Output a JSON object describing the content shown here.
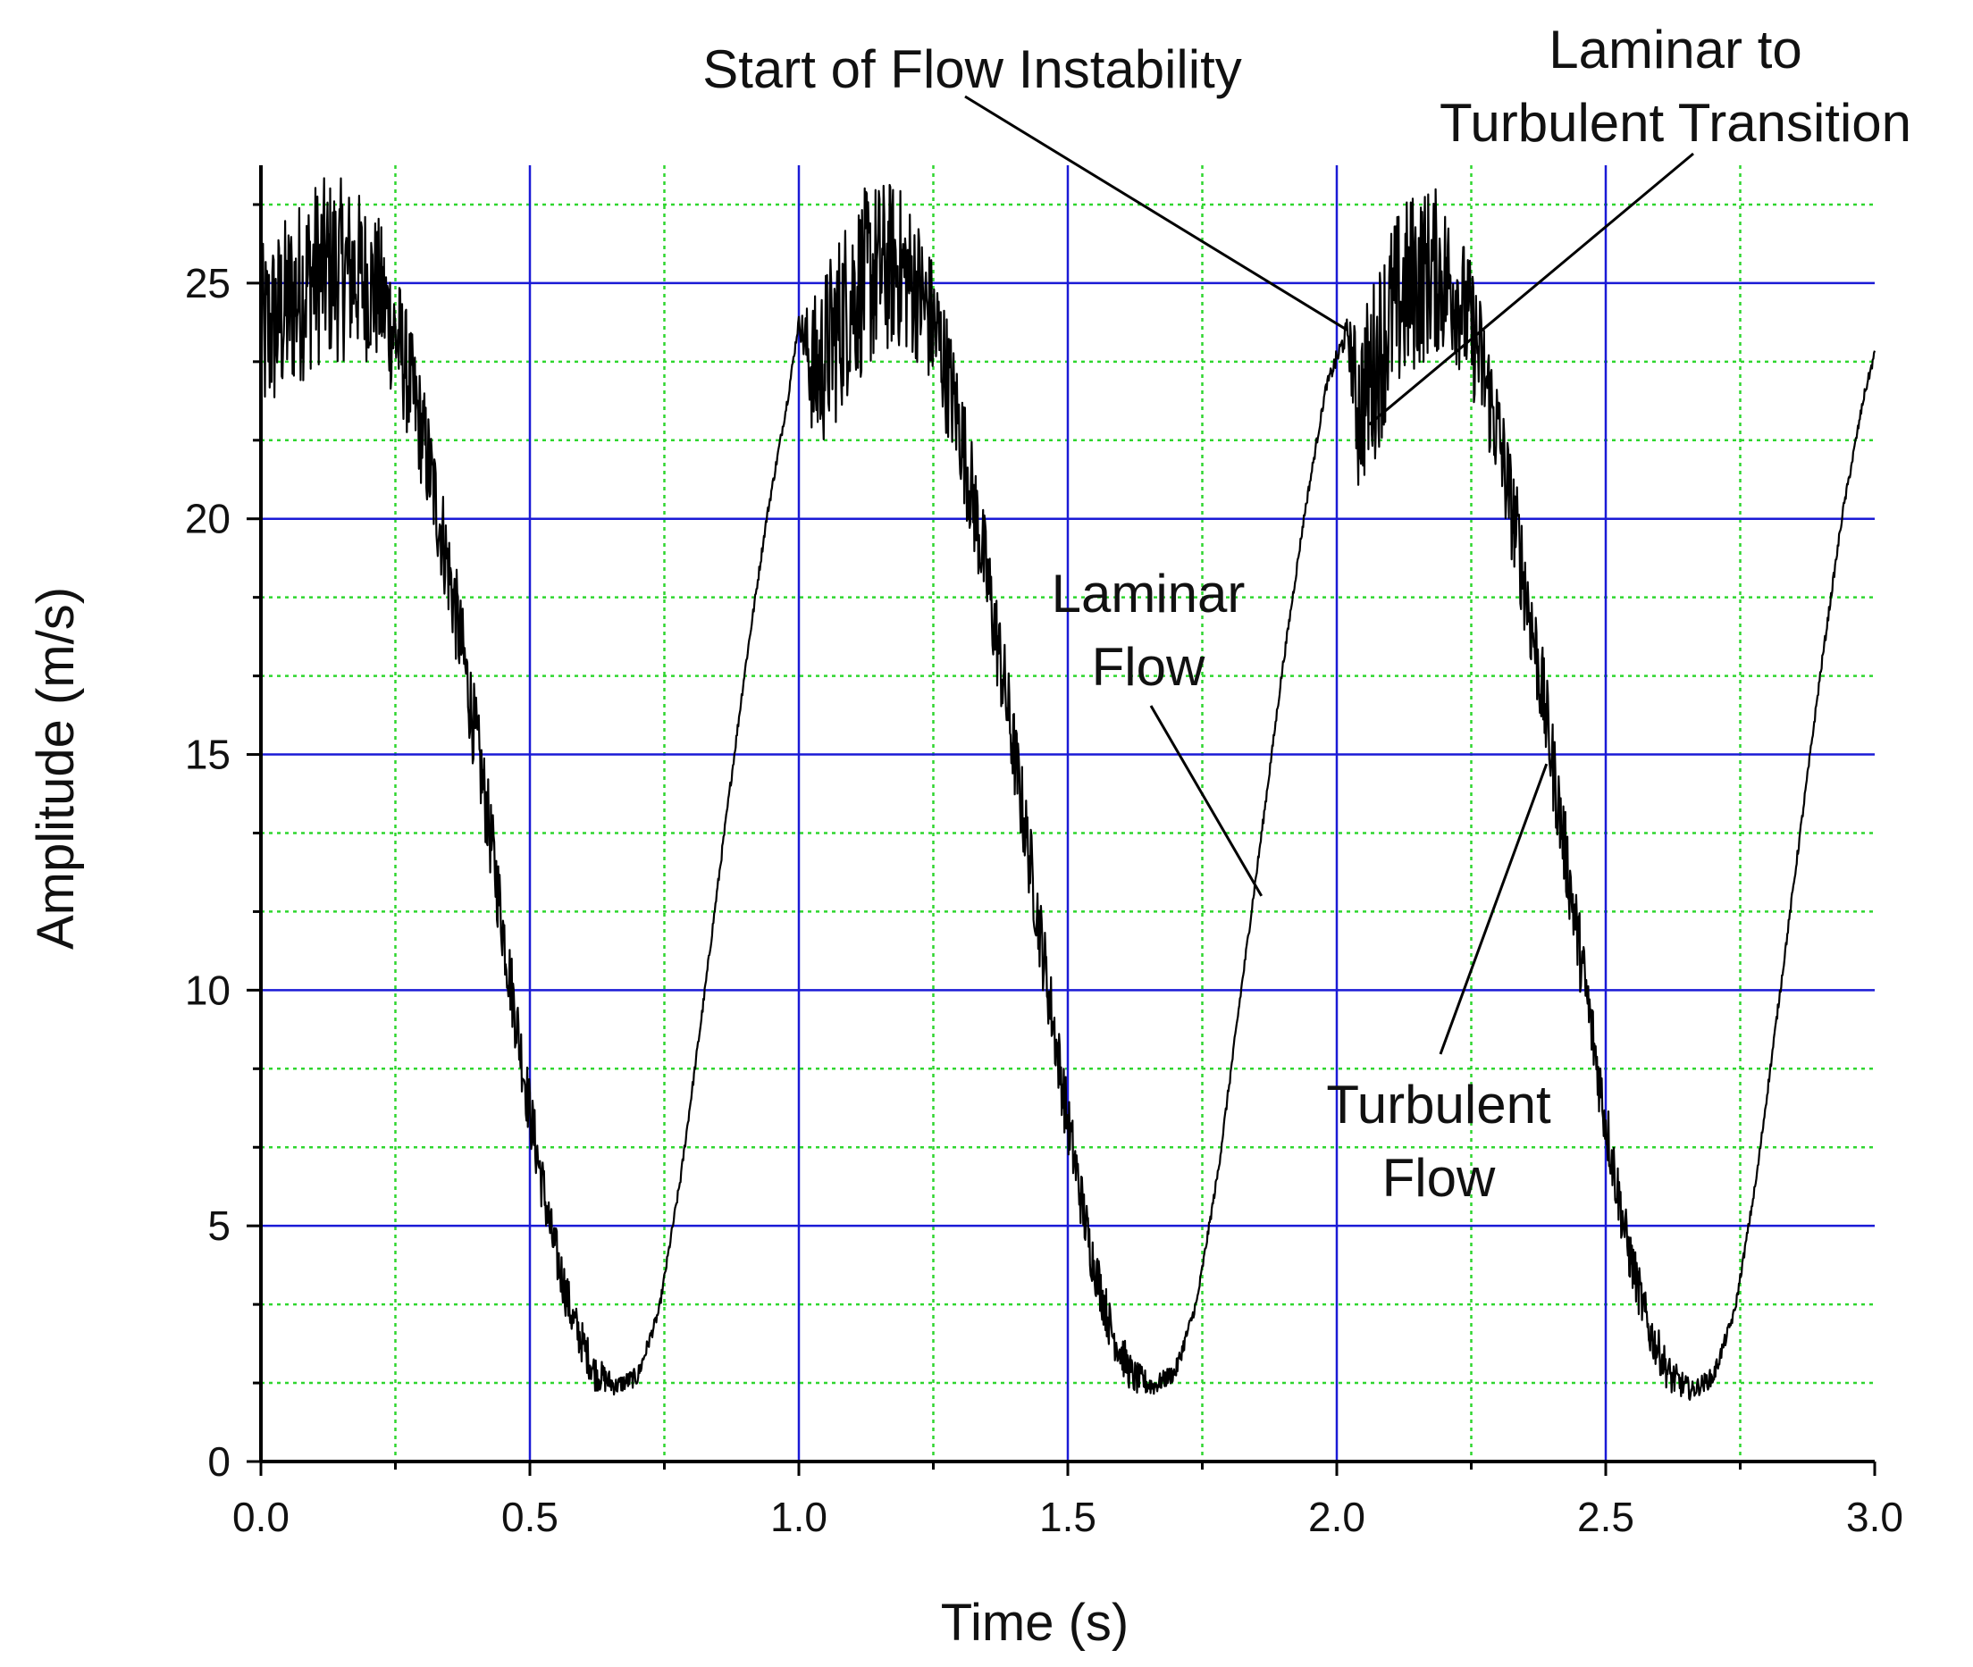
{
  "chart_data": {
    "type": "line",
    "title": "",
    "xlabel": "Time (s)",
    "ylabel": "Amplitude (m/s)",
    "xlim": [
      0,
      3.0
    ],
    "ylim": [
      0,
      27.5
    ],
    "x_ticks": [
      "0.0",
      "0.5",
      "1.0",
      "1.5",
      "2.0",
      "2.5",
      "3.0"
    ],
    "y_ticks": [
      "0",
      "5",
      "10",
      "15",
      "20",
      "25"
    ],
    "grid": {
      "major": true,
      "major_color": "#1a1ad6",
      "minor": true,
      "minor_color": "#2fd62f",
      "minor_style": "dotted"
    },
    "line_color": "#000000",
    "series": [
      {
        "name": "",
        "x": [
          0.0,
          0.03,
          0.07,
          0.1,
          0.14,
          0.18,
          0.22,
          0.26,
          0.3,
          0.34,
          0.38,
          0.42,
          0.46,
          0.5,
          0.54,
          0.58,
          0.62,
          0.66,
          0.7,
          0.74,
          0.78,
          0.82,
          0.86,
          0.9,
          0.94,
          0.98,
          1.0,
          1.03,
          1.07,
          1.1,
          1.14,
          1.18,
          1.22,
          1.26,
          1.3,
          1.34,
          1.38,
          1.42,
          1.46,
          1.5,
          1.54,
          1.58,
          1.62,
          1.66,
          1.7,
          1.74,
          1.78,
          1.82,
          1.86,
          1.9,
          1.94,
          1.98,
          2.02,
          2.04,
          2.07,
          2.1,
          2.14,
          2.18,
          2.22,
          2.26,
          2.3,
          2.34,
          2.38,
          2.42,
          2.46,
          2.5,
          2.54,
          2.58,
          2.62,
          2.66,
          2.7,
          2.74,
          2.78,
          2.82,
          2.86,
          2.9,
          2.94,
          2.98,
          3.0
        ],
        "y": [
          23.8,
          24.2,
          24.8,
          25.2,
          25.3,
          25.2,
          24.8,
          23.6,
          21.8,
          19.5,
          16.8,
          13.8,
          10.5,
          7.4,
          4.8,
          3.0,
          1.9,
          1.6,
          1.8,
          3.2,
          6.0,
          9.5,
          13.2,
          16.8,
          20.0,
          22.6,
          24.2,
          23.0,
          24.0,
          24.8,
          25.2,
          25.4,
          24.9,
          23.8,
          21.9,
          19.4,
          16.6,
          13.5,
          10.3,
          7.2,
          4.6,
          2.8,
          1.8,
          1.6,
          1.9,
          3.4,
          6.2,
          9.8,
          13.3,
          16.9,
          20.1,
          22.8,
          24.0,
          22.3,
          23.2,
          24.3,
          25.0,
          25.3,
          24.9,
          23.7,
          21.8,
          19.3,
          16.5,
          13.3,
          10.2,
          7.2,
          4.6,
          2.8,
          1.8,
          1.5,
          1.8,
          3.2,
          6.0,
          9.6,
          13.2,
          16.8,
          20.1,
          22.6,
          23.5
        ],
        "noise_amp": [
          2.0,
          2.0,
          2.0,
          2.0,
          2.0,
          1.8,
          1.6,
          1.4,
          1.2,
          1.1,
          1.0,
          0.9,
          0.8,
          0.7,
          0.6,
          0.5,
          0.4,
          0.2,
          0.2,
          0.1,
          0.1,
          0.1,
          0.1,
          0.1,
          0.1,
          0.1,
          0.1,
          1.8,
          2.0,
          2.0,
          2.0,
          1.8,
          1.6,
          1.4,
          1.2,
          1.1,
          1.0,
          0.9,
          0.8,
          0.7,
          0.6,
          0.5,
          0.4,
          0.2,
          0.2,
          0.1,
          0.1,
          0.1,
          0.1,
          0.1,
          0.1,
          0.1,
          0.3,
          1.8,
          2.0,
          2.0,
          2.0,
          1.8,
          1.6,
          1.4,
          1.2,
          1.1,
          1.0,
          0.9,
          0.8,
          0.7,
          0.6,
          0.5,
          0.4,
          0.2,
          0.2,
          0.1,
          0.1,
          0.1,
          0.1,
          0.1,
          0.1,
          0.1,
          0.1
        ]
      }
    ],
    "annotations": [
      {
        "lines": [
          "Start of Flow Instability"
        ],
        "target": [
          2.02,
          24.0
        ]
      },
      {
        "lines": [
          "Laminar to",
          "Turbulent Transition"
        ],
        "target": [
          2.06,
          22.0
        ]
      },
      {
        "lines": [
          "Laminar",
          "Flow"
        ],
        "target": [
          1.86,
          12.0
        ]
      },
      {
        "lines": [
          "Turbulent",
          "Flow"
        ],
        "target": [
          2.39,
          14.8
        ]
      }
    ]
  }
}
